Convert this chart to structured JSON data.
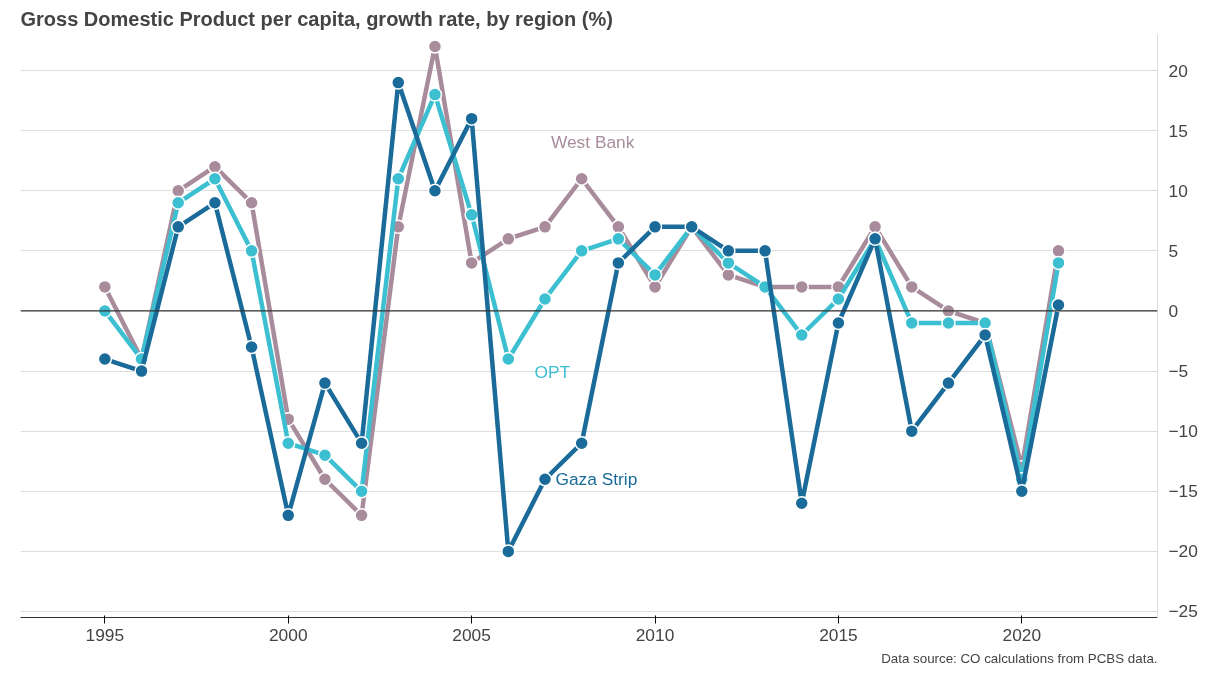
{
  "chart_data": {
    "type": "line",
    "title": "Gross Domestic Product per capita, growth rate, by region (%)",
    "x": [
      1995,
      1996,
      1997,
      1998,
      1999,
      2000,
      2001,
      2002,
      2003,
      2004,
      2005,
      2006,
      2007,
      2008,
      2009,
      2010,
      2011,
      2012,
      2013,
      2014,
      2015,
      2016,
      2017,
      2018,
      2019,
      2020,
      2021
    ],
    "series": [
      {
        "name": "West Bank",
        "color": "#a98c9c",
        "values": [
          2,
          -4,
          10,
          12,
          9,
          -9,
          -14,
          -17,
          7,
          22,
          4,
          6,
          7,
          11,
          7,
          2,
          7,
          3,
          2,
          2,
          2,
          7,
          2,
          0,
          -1,
          -13,
          5
        ]
      },
      {
        "name": "OPT",
        "color": "#3cbfd1",
        "values": [
          0,
          -4,
          9,
          11,
          5,
          -11,
          -12,
          -15,
          11,
          18,
          8,
          -4,
          1,
          5,
          6,
          3,
          7,
          4,
          2,
          -2,
          1,
          6,
          -1,
          -1,
          -1,
          -14,
          4
        ]
      },
      {
        "name": "Gaza Strip",
        "color": "#1a6b99",
        "values": [
          -4,
          -5,
          7,
          9,
          -3,
          -17,
          -6,
          -11,
          19,
          10,
          16,
          -20,
          -14,
          -11,
          4,
          7,
          7,
          5,
          5,
          -16,
          -1,
          6,
          -10,
          -6,
          -2,
          -15,
          0.5
        ]
      }
    ],
    "xlim": [
      1992.7,
      2023.7
    ],
    "xticks": [
      1995,
      2000,
      2005,
      2010,
      2015,
      2020
    ],
    "ylim": [
      -25.5,
      23
    ],
    "yticks": [
      -25,
      -20,
      -15,
      -10,
      -5,
      0,
      5,
      10,
      15,
      20
    ],
    "grid": "y",
    "marker": "circle",
    "line_style": "solid",
    "ref_lines": [
      {
        "axis": "y",
        "value": 0,
        "color": "#333333"
      }
    ],
    "annotations": [
      "Data source: CO calculations from PCBS data."
    ]
  }
}
